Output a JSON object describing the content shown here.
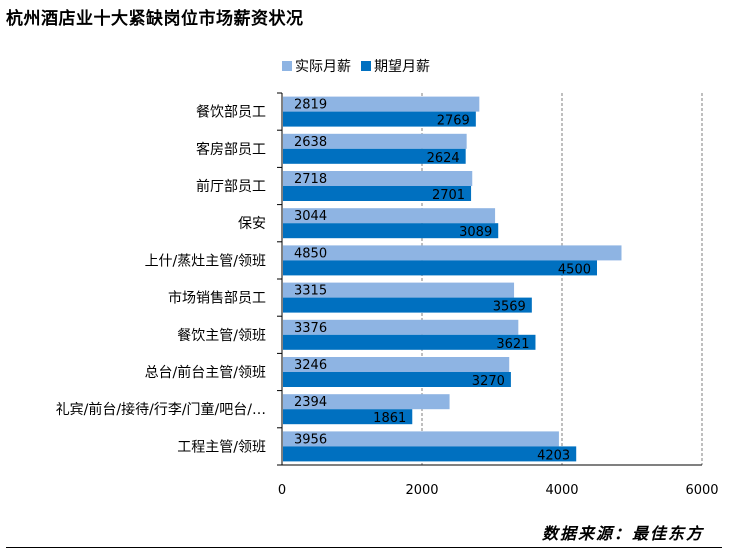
{
  "title": "杭州酒店业十大紧缺岗位市场薪资状况",
  "source": "数据来源：最佳东方",
  "colors": {
    "actual": "#8EB4E3",
    "expected": "#0070C0"
  },
  "chart_data": {
    "type": "bar",
    "orientation": "horizontal",
    "categories": [
      "餐饮部员工",
      "客房部员工",
      "前厅部员工",
      "保安",
      "上什/蒸灶主管/领班",
      "市场销售部员工",
      "餐饮主管/领班",
      "总台/前台主管/领班",
      "礼宾/前台/接待/行李/门童/吧台/…",
      "工程主管/领班"
    ],
    "series": [
      {
        "name": "实际月薪",
        "values": [
          2819,
          2638,
          2718,
          3044,
          4850,
          3315,
          3376,
          3246,
          2394,
          3956
        ]
      },
      {
        "name": "期望月薪",
        "values": [
          2769,
          2624,
          2701,
          3089,
          4500,
          3569,
          3621,
          3270,
          1861,
          4203
        ]
      }
    ],
    "xlim": [
      0,
      6000
    ],
    "xticks": [
      "0",
      "2000",
      "4000",
      "6000"
    ],
    "grid": "vertical dashed",
    "legend": "top"
  }
}
